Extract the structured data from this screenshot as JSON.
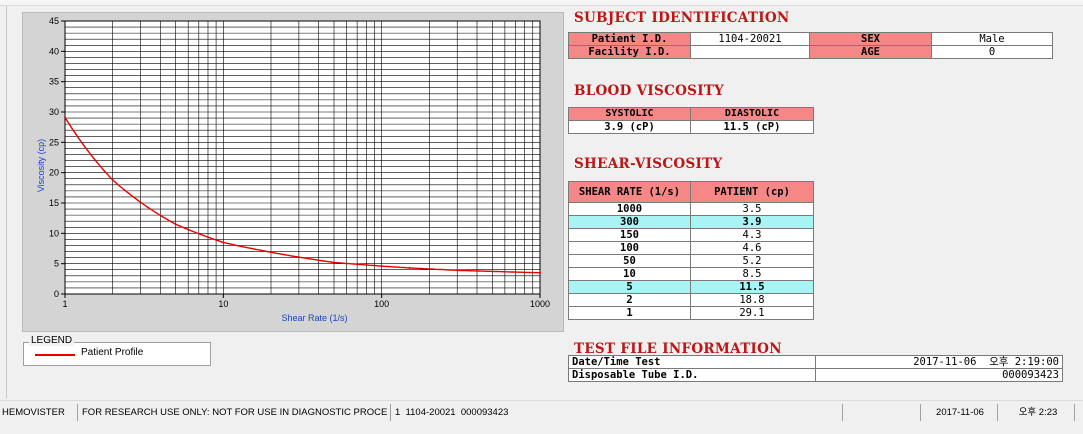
{
  "subject": {
    "title": "SUBJECT IDENTIFICATION",
    "patient_id_label": "Patient I.D.",
    "patient_id_value": "1104-20021",
    "sex_label": "SEX",
    "sex_value": "Male",
    "facility_id_label": "Facility I.D.",
    "facility_id_value": "",
    "age_label": "AGE",
    "age_value": "0"
  },
  "blood_viscosity": {
    "title": "BLOOD VISCOSITY",
    "systolic_label": "SYSTOLIC",
    "diastolic_label": "DIASTOLIC",
    "systolic_value": "3.9 (cP)",
    "diastolic_value": "11.5 (cP)"
  },
  "shear_viscosity": {
    "title": "SHEAR-VISCOSITY",
    "col_rate": "SHEAR RATE (1/s)",
    "col_patient": "PATIENT (cp)",
    "rows": [
      {
        "rate": "1000",
        "value": "3.5",
        "highlight": false
      },
      {
        "rate": "300",
        "value": "3.9",
        "highlight": true
      },
      {
        "rate": "150",
        "value": "4.3",
        "highlight": false
      },
      {
        "rate": "100",
        "value": "4.6",
        "highlight": false
      },
      {
        "rate": "50",
        "value": "5.2",
        "highlight": false
      },
      {
        "rate": "10",
        "value": "8.5",
        "highlight": false
      },
      {
        "rate": "5",
        "value": "11.5",
        "highlight": true
      },
      {
        "rate": "2",
        "value": "18.8",
        "highlight": false
      },
      {
        "rate": "1",
        "value": "29.1",
        "highlight": false
      }
    ]
  },
  "test_file": {
    "title": "TEST FILE INFORMATION",
    "datetime_label": "Date/Time Test",
    "datetime_value": "2017-11-06  오후 2:19:00",
    "tube_label": "Disposable Tube I.D.",
    "tube_value": "000093423"
  },
  "legend": {
    "title": "LEGEND",
    "entry": "Patient Profile",
    "line_color": "#e60000"
  },
  "status_bar": {
    "app_name": "HEMOVISTER",
    "notice": "FOR RESEARCH USE ONLY: NOT FOR USE IN DIAGNOSTIC PROCEDURES",
    "record": "1  1104-20021  000093423",
    "date": "2017-11-06",
    "time": "오후 2:23"
  },
  "chart_data": {
    "type": "line",
    "xlabel": "Shear Rate (1/s)",
    "ylabel": "Viscosity (cp)",
    "x_scale": "log",
    "xlim": [
      1,
      1000
    ],
    "ylim": [
      0,
      45
    ],
    "x_ticks": [
      1,
      10,
      100,
      1000
    ],
    "y_ticks": [
      0,
      5,
      10,
      15,
      20,
      25,
      30,
      35,
      40,
      45
    ],
    "grid": true,
    "series": [
      {
        "name": "Patient Profile",
        "color": "#e60000",
        "x": [
          1,
          2,
          5,
          10,
          50,
          100,
          150,
          300,
          1000
        ],
        "y": [
          29.1,
          18.8,
          11.5,
          8.5,
          5.2,
          4.6,
          4.3,
          3.9,
          3.5
        ]
      }
    ]
  }
}
